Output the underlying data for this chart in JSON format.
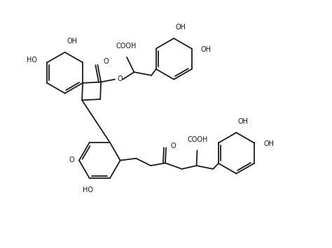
{
  "background_color": "#ffffff",
  "line_color": "#1a1a1a",
  "line_width": 1.3,
  "font_size": 7.0,
  "fig_width": 4.74,
  "fig_height": 3.55,
  "xlim": [
    0,
    10
  ],
  "ylim": [
    0,
    7.5
  ]
}
